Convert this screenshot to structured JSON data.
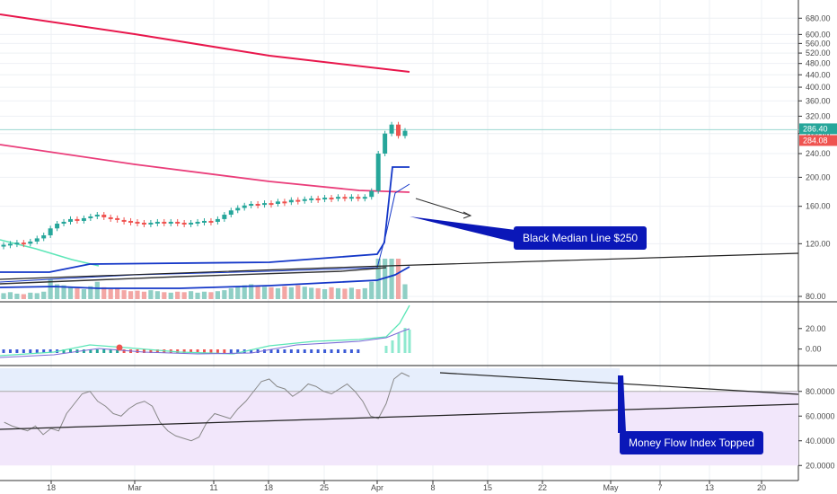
{
  "chart_data": [
    {
      "type": "line",
      "panel": "price",
      "scale": "log",
      "y_ticks": [
        "680.00",
        "600.00",
        "560.00",
        "520.00",
        "480.00",
        "440.00",
        "400.00",
        "360.00",
        "320.00",
        "280.00",
        "240.00",
        "200.00",
        "160.00",
        "120.00",
        "80.00"
      ],
      "ylim": [
        80,
        730
      ],
      "x_ticks": [
        "18",
        "Mar",
        "11",
        "18",
        "25",
        "Apr",
        "8",
        "15",
        "22",
        "May",
        "7",
        "13",
        "20"
      ],
      "price_labels": {
        "upper": "286.40",
        "lower": "284.08"
      },
      "colors": {
        "up": "#26a69a",
        "down": "#ef5350",
        "ma_upper": "#e8174c",
        "ma_mid": "#ea3d7a",
        "ma_lower": "#5ce6b7",
        "channel": "#1437c8",
        "median": "#222222",
        "volume_up": "#8fcfc5",
        "volume_down": "#f3a6a4"
      },
      "series": [
        {
          "x": [
            0,
            1,
            2,
            3,
            4,
            5,
            6,
            7,
            8,
            9,
            10,
            11,
            12,
            13,
            14,
            15,
            16,
            17,
            18,
            19,
            20,
            21,
            22,
            23,
            24,
            25,
            26,
            27,
            28,
            29,
            30,
            31,
            32,
            33,
            34,
            35,
            36,
            37,
            38,
            39,
            40,
            41,
            42,
            43,
            44,
            45,
            46,
            47,
            48,
            49,
            50,
            51,
            52,
            53,
            54,
            55,
            56,
            57,
            58,
            59,
            60
          ],
          "open": [
            118,
            119,
            120,
            121,
            120,
            122,
            125,
            128,
            135,
            140,
            142,
            145,
            143,
            146,
            148,
            150,
            147,
            146,
            144,
            143,
            142,
            141,
            140,
            141,
            142,
            141,
            142,
            141,
            140,
            141,
            142,
            143,
            142,
            145,
            150,
            155,
            158,
            161,
            163,
            162,
            164,
            163,
            166,
            165,
            168,
            167,
            169,
            170,
            169,
            171,
            170,
            172,
            171,
            172,
            170,
            172,
            180,
            240,
            280,
            300,
            275
          ],
          "close": [
            119,
            120,
            121,
            120,
            122,
            125,
            128,
            135,
            140,
            142,
            145,
            143,
            146,
            148,
            150,
            147,
            146,
            144,
            143,
            142,
            141,
            140,
            141,
            142,
            141,
            142,
            141,
            140,
            141,
            142,
            143,
            142,
            145,
            150,
            155,
            158,
            161,
            163,
            162,
            164,
            163,
            166,
            165,
            168,
            167,
            169,
            170,
            169,
            171,
            170,
            172,
            171,
            172,
            170,
            172,
            180,
            240,
            280,
            300,
            275,
            286
          ]
        }
      ],
      "volume": [
        12,
        14,
        11,
        10,
        13,
        12,
        15,
        40,
        30,
        28,
        25,
        22,
        20,
        26,
        35,
        24,
        20,
        22,
        18,
        16,
        17,
        15,
        18,
        16,
        14,
        13,
        15,
        14,
        16,
        13,
        15,
        14,
        16,
        18,
        22,
        26,
        28,
        30,
        27,
        25,
        24,
        22,
        26,
        24,
        28,
        25,
        23,
        22,
        20,
        24,
        22,
        21,
        23,
        20,
        22,
        35,
        90,
        180,
        150,
        120,
        30
      ],
      "ma_upper": [
        670,
        600,
        555
      ],
      "ma_mid": [
        390,
        310,
        285
      ],
      "annotation": "Black Median Line $250"
    },
    {
      "type": "line",
      "panel": "macd",
      "y_ticks": [
        "20.00",
        "0.00"
      ],
      "ylim": [
        -10,
        40
      ]
    },
    {
      "type": "line",
      "panel": "mfi",
      "y_ticks": [
        "80.0000",
        "60.0000",
        "40.0000",
        "20.0000"
      ],
      "ylim": [
        10,
        98
      ],
      "values": [
        55,
        52,
        50,
        48,
        52,
        45,
        50,
        48,
        62,
        70,
        78,
        80,
        72,
        68,
        62,
        60,
        66,
        70,
        72,
        68,
        55,
        48,
        44,
        42,
        40,
        43,
        55,
        62,
        60,
        58,
        66,
        72,
        80,
        88,
        90,
        84,
        82,
        76,
        80,
        86,
        84,
        80,
        78,
        82,
        86,
        80,
        72,
        60,
        58,
        70,
        90,
        95,
        92
      ],
      "annotation": "Money Flow Index Topped"
    }
  ],
  "annotations": {
    "median": "Black Median Line $250",
    "mfi": "Money Flow Index Topped"
  }
}
